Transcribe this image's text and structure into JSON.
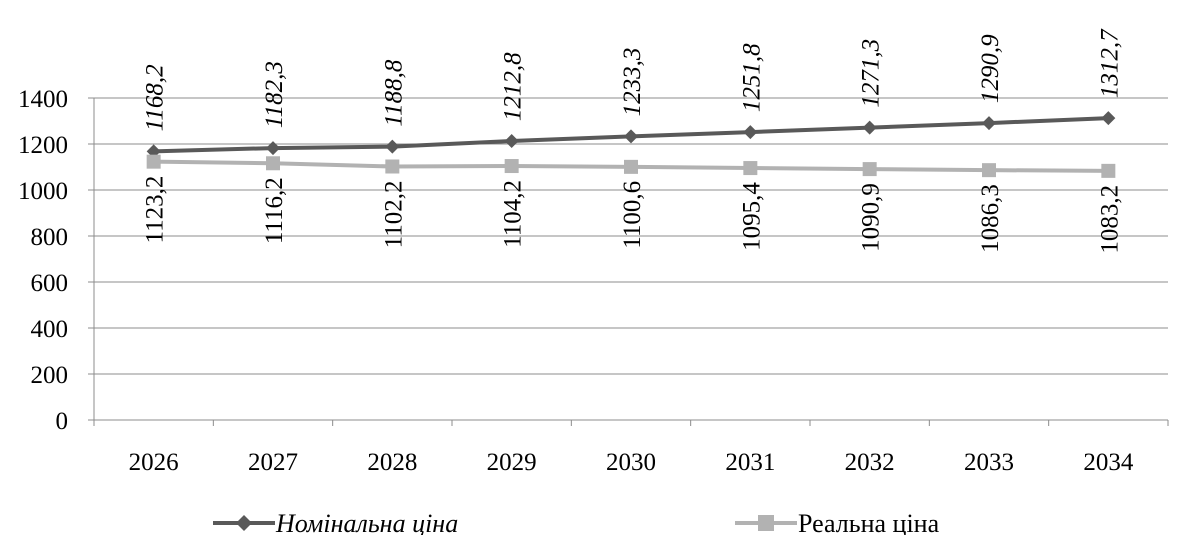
{
  "chart_data": {
    "type": "line",
    "categories": [
      "2026",
      "2027",
      "2028",
      "2029",
      "2030",
      "2031",
      "2032",
      "2033",
      "2034"
    ],
    "ylim": [
      0,
      1400
    ],
    "yticks": [
      "0",
      "200",
      "400",
      "600",
      "800",
      "1000",
      "1200",
      "1400"
    ],
    "grid": "horizontal",
    "legend": "bottom",
    "series": [
      {
        "name": "Номінальна ціна",
        "values": [
          1168.2,
          1182.3,
          1188.8,
          1212.8,
          1233.3,
          1251.8,
          1271.3,
          1290.9,
          1312.7
        ],
        "labels": [
          "1168,2",
          "1182,3",
          "1188,8",
          "1212,8",
          "1233,3",
          "1251,8",
          "1271,3",
          "1290,9",
          "1312,7"
        ],
        "color": "#595959",
        "marker": "diamond"
      },
      {
        "name": "Реальна ціна",
        "values": [
          1123.2,
          1116.2,
          1102.2,
          1104.2,
          1100.6,
          1095.4,
          1090.9,
          1086.3,
          1083.2
        ],
        "labels": [
          "1123,2",
          "1116,2",
          "1102,2",
          "1104,2",
          "1100,6",
          "1095,4",
          "1090,9",
          "1086,3",
          "1083,2"
        ],
        "color": "#b2b2b2",
        "marker": "square"
      }
    ]
  }
}
